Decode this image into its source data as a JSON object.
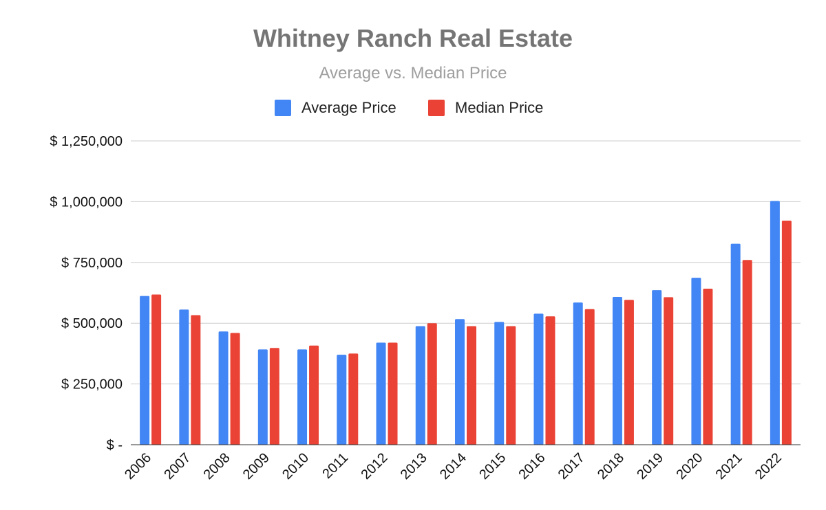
{
  "chart_data": {
    "type": "bar",
    "title": "Whitney Ranch Real Estate",
    "subtitle": "Average vs. Median Price",
    "xlabel": "",
    "ylabel": "",
    "categories": [
      "2006",
      "2007",
      "2008",
      "2009",
      "2010",
      "2011",
      "2012",
      "2013",
      "2014",
      "2015",
      "2016",
      "2017",
      "2018",
      "2019",
      "2020",
      "2021",
      "2022"
    ],
    "series": [
      {
        "name": "Average Price",
        "color": "#4285f4",
        "values": [
          612000,
          556000,
          466000,
          392000,
          392000,
          370000,
          420000,
          488000,
          517000,
          505000,
          539000,
          585000,
          608000,
          636000,
          687000,
          827000,
          1003000
        ]
      },
      {
        "name": "Median Price",
        "color": "#ea4335",
        "values": [
          618000,
          533000,
          460000,
          398000,
          408000,
          375000,
          420000,
          500000,
          488000,
          488000,
          528000,
          558000,
          596000,
          607000,
          642000,
          760000,
          922000
        ]
      }
    ],
    "ylim": [
      0,
      1250000
    ],
    "yticks": [
      {
        "value": 0,
        "label": "$ -"
      },
      {
        "value": 250000,
        "label": "$ 250,000"
      },
      {
        "value": 500000,
        "label": "$ 500,000"
      },
      {
        "value": 750000,
        "label": "$ 750,000"
      },
      {
        "value": 1000000,
        "label": "$ 1,000,000"
      },
      {
        "value": 1250000,
        "label": "$ 1,250,000"
      }
    ],
    "grid": true,
    "legend_position": "top"
  }
}
